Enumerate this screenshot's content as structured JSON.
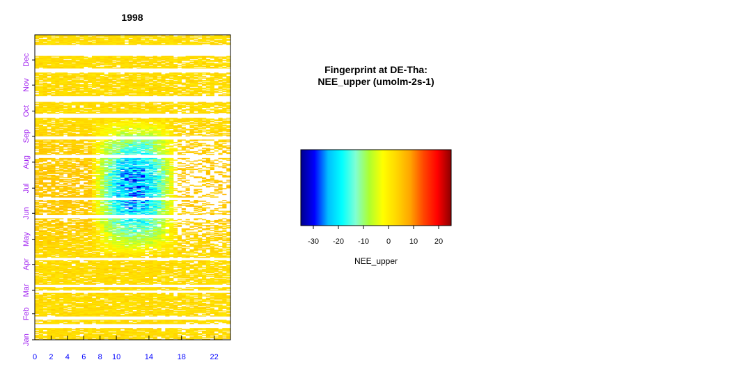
{
  "chart_data": [
    {
      "type": "heatmap",
      "title": "1998",
      "xlabel": "",
      "ylabel": "",
      "x": {
        "quantity": "hour of day",
        "range": [
          0,
          24
        ],
        "ticks": [
          0,
          2,
          4,
          6,
          8,
          10,
          14,
          18,
          22
        ],
        "tick_labels": [
          "0",
          "2",
          "4",
          "6",
          "8",
          "10",
          "14",
          "18",
          "22"
        ],
        "tick_color": "#0000ff"
      },
      "y": {
        "quantity": "day of year",
        "range": [
          1,
          365
        ],
        "ticks": [
          1,
          32,
          60,
          91,
          121,
          152,
          182,
          213,
          244,
          274,
          305,
          335
        ],
        "tick_labels": [
          "Jan",
          "Feb",
          "Mar",
          "Apr",
          "May",
          "Jun",
          "Jul",
          "Aug",
          "Sep",
          "Oct",
          "Nov",
          "Dec"
        ],
        "tick_color": "#a020f0"
      },
      "color_scale": {
        "name": "NEE_upper",
        "range": [
          -35,
          25
        ],
        "stops": [
          "#00008b",
          "#0000ff",
          "#00bfff",
          "#00ffff",
          "#7fffd4",
          "#adff2f",
          "#ffff00",
          "#ffd700",
          "#ffa500",
          "#ff4500",
          "#ff0000",
          "#8b0000"
        ]
      },
      "blank_day_ranges": [
        [
          15,
          19
        ],
        [
          25,
          28
        ],
        [
          57,
          59
        ],
        [
          64,
          66
        ],
        [
          96,
          98
        ],
        [
          146,
          149
        ],
        [
          168,
          170
        ],
        [
          218,
          221
        ],
        [
          240,
          243
        ],
        [
          266,
          270
        ],
        [
          285,
          291
        ],
        [
          320,
          324
        ],
        [
          340,
          352
        ]
      ],
      "description": "NEE_upper: weakly positive (yellow/orange) values at night all year; strongly negative (blue) uptake around midday (about 8-17 h) from late April to mid September"
    },
    {
      "type": "colorbar",
      "title": [
        "Fingerprint at DE-Tha:",
        "NEE_upper (umolm-2s-1)"
      ],
      "xlabel": "NEE_upper",
      "range": [
        -35,
        25
      ],
      "ticks": [
        -30,
        -20,
        -10,
        0,
        10,
        20
      ],
      "tick_labels": [
        "-30",
        "-20",
        "-10",
        "0",
        "10",
        "20"
      ],
      "stops": [
        "#00008b",
        "#0000ff",
        "#00bfff",
        "#00ffff",
        "#7fffd4",
        "#adff2f",
        "#ffff00",
        "#ffd700",
        "#ffa500",
        "#ff4500",
        "#ff0000",
        "#8b0000"
      ]
    }
  ]
}
